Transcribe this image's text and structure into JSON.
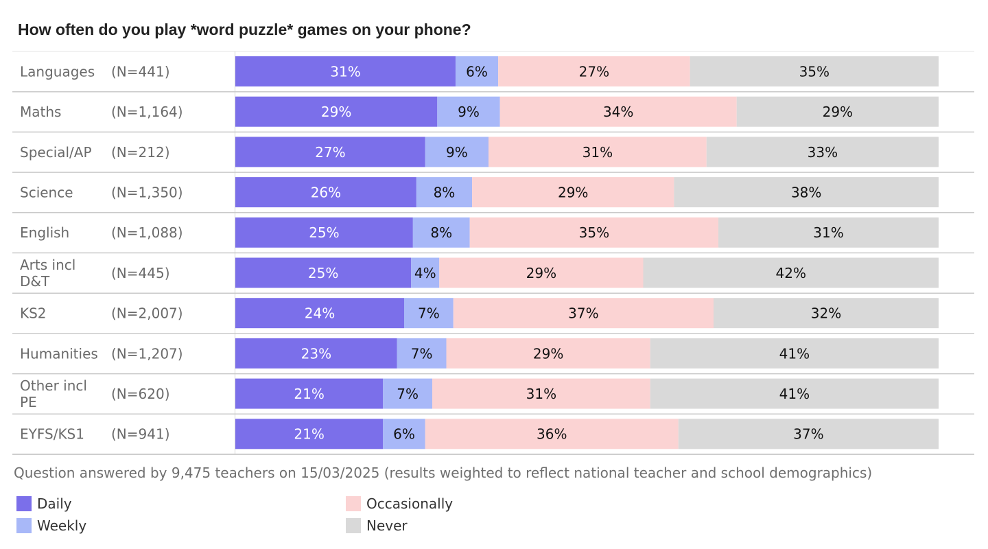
{
  "chart_data": {
    "type": "bar",
    "orientation": "horizontal",
    "stacked": true,
    "title": "How often do you play *word puzzle* games on your phone?",
    "categories": [
      "Languages",
      "Maths",
      "Special/AP",
      "Science",
      "English",
      "Arts incl D&T",
      "KS2",
      "Humanities",
      "Other incl PE",
      "EYFS/KS1"
    ],
    "category_lines": [
      [
        "Languages"
      ],
      [
        "Maths"
      ],
      [
        "Special/AP"
      ],
      [
        "Science"
      ],
      [
        "English"
      ],
      [
        "Arts incl",
        "D&T"
      ],
      [
        "KS2"
      ],
      [
        "Humanities"
      ],
      [
        "Other incl",
        "PE"
      ],
      [
        "EYFS/KS1"
      ]
    ],
    "sample_sizes": [
      "(N=441)",
      "(N=1,164)",
      "(N=212)",
      "(N=1,350)",
      "(N=1,088)",
      "(N=445)",
      "(N=2,007)",
      "(N=1,207)",
      "(N=620)",
      "(N=941)"
    ],
    "series": [
      {
        "name": "Daily",
        "color": "#7b6fea",
        "label_color": "#ffffff",
        "values": [
          31,
          29,
          27,
          26,
          25,
          25,
          24,
          23,
          21,
          21
        ]
      },
      {
        "name": "Weekly",
        "color": "#a8b8f8",
        "label_color": "#111111",
        "values": [
          6,
          9,
          9,
          8,
          8,
          4,
          7,
          7,
          7,
          6
        ]
      },
      {
        "name": "Occasionally",
        "color": "#fbd3d3",
        "label_color": "#111111",
        "values": [
          27,
          34,
          31,
          29,
          35,
          29,
          37,
          29,
          31,
          36
        ]
      },
      {
        "name": "Never",
        "color": "#d9d9d9",
        "label_color": "#111111",
        "values": [
          35,
          29,
          33,
          38,
          31,
          42,
          32,
          41,
          41,
          37
        ]
      }
    ],
    "value_suffix": "%",
    "xlim": [
      0,
      100
    ],
    "legend_position": "bottom-left",
    "grid": false
  },
  "footnote": "Question answered by 9,475 teachers on 15/03/2025 (results weighted to reflect national teacher and school demographics)"
}
